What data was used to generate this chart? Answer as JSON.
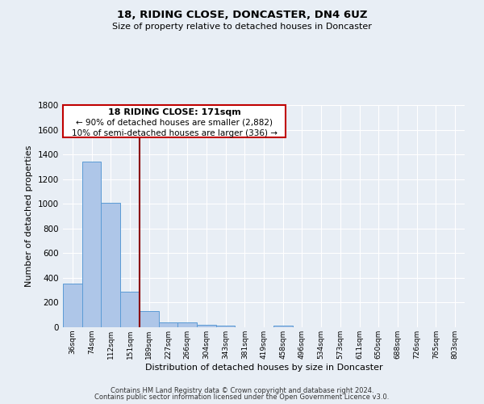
{
  "title": "18, RIDING CLOSE, DONCASTER, DN4 6UZ",
  "subtitle": "Size of property relative to detached houses in Doncaster",
  "xlabel": "Distribution of detached houses by size in Doncaster",
  "ylabel": "Number of detached properties",
  "bar_labels": [
    "36sqm",
    "74sqm",
    "112sqm",
    "151sqm",
    "189sqm",
    "227sqm",
    "266sqm",
    "304sqm",
    "343sqm",
    "381sqm",
    "419sqm",
    "458sqm",
    "496sqm",
    "534sqm",
    "573sqm",
    "611sqm",
    "650sqm",
    "688sqm",
    "726sqm",
    "765sqm",
    "803sqm"
  ],
  "bar_values": [
    355,
    1340,
    1010,
    290,
    130,
    40,
    40,
    20,
    15,
    0,
    0,
    15,
    0,
    0,
    0,
    0,
    0,
    0,
    0,
    0,
    0
  ],
  "bar_color": "#aec6e8",
  "bar_edge_color": "#5b9bd5",
  "ylim": [
    0,
    1800
  ],
  "yticks": [
    0,
    200,
    400,
    600,
    800,
    1000,
    1200,
    1400,
    1600,
    1800
  ],
  "vline_x": 3.5,
  "vline_color": "#8b0000",
  "annotation_title": "18 RIDING CLOSE: 171sqm",
  "annotation_line1": "← 90% of detached houses are smaller (2,882)",
  "annotation_line2": "10% of semi-detached houses are larger (336) →",
  "footer_line1": "Contains HM Land Registry data © Crown copyright and database right 2024.",
  "footer_line2": "Contains public sector information licensed under the Open Government Licence v3.0.",
  "bg_color": "#e8eef5"
}
